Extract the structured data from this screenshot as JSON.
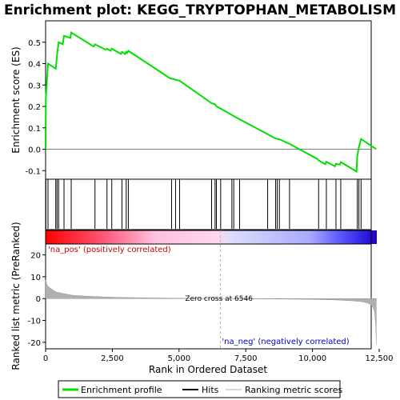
{
  "chart_data": {
    "type": "line",
    "title": "Enrichment plot: KEGG_TRYPTOPHAN_METABOLISM",
    "xlabel": "Rank in Ordered Dataset",
    "ylabel_top": "Enrichment score (ES)",
    "ylabel_bottom": "Ranked list metric (PreRanked)",
    "xlim": [
      0,
      12500
    ],
    "ylim_top": [
      -0.14,
      0.6
    ],
    "ylim_bottom": [
      -23,
      25
    ],
    "x_ticks": [
      "0",
      "2,500",
      "5,000",
      "7,500",
      "10,000",
      "12,500"
    ],
    "x_tick_values": [
      0,
      2500,
      5000,
      7500,
      10000,
      12500
    ],
    "y_ticks_top": [
      "-0.1",
      "0.0",
      "0.1",
      "0.2",
      "0.3",
      "0.4",
      "0.5"
    ],
    "y_tick_values_top": [
      -0.1,
      0.0,
      0.1,
      0.2,
      0.3,
      0.4,
      0.5
    ],
    "y_ticks_bottom": [
      "-20",
      "-10",
      "0",
      "10",
      "20"
    ],
    "y_tick_values_bottom": [
      -20,
      -10,
      0,
      10,
      20
    ],
    "zero_cross_label": "Zero cross at 6546",
    "zero_cross": 6546,
    "na_pos_label": "'na_pos' (positively correlated)",
    "na_neg_label": "'na_neg' (negatively correlated)",
    "hits": [
      10,
      90,
      380,
      430,
      490,
      690,
      960,
      1850,
      2300,
      2480,
      2860,
      3020,
      3100,
      4720,
      4870,
      5020,
      6220,
      6350,
      6400,
      6560,
      6980,
      7050,
      7270,
      8320,
      8620,
      8680,
      8760,
      9140,
      10230,
      10520,
      10880,
      11060,
      11680,
      11740,
      11820
    ],
    "es_curve": [
      [
        0,
        0.0
      ],
      [
        10,
        0.24
      ],
      [
        90,
        0.4
      ],
      [
        380,
        0.376
      ],
      [
        430,
        0.44
      ],
      [
        490,
        0.5
      ],
      [
        640,
        0.49
      ],
      [
        690,
        0.53
      ],
      [
        930,
        0.52
      ],
      [
        960,
        0.545
      ],
      [
        1800,
        0.48
      ],
      [
        1850,
        0.49
      ],
      [
        2250,
        0.465
      ],
      [
        2300,
        0.47
      ],
      [
        2430,
        0.46
      ],
      [
        2480,
        0.47
      ],
      [
        2820,
        0.445
      ],
      [
        2860,
        0.455
      ],
      [
        2980,
        0.445
      ],
      [
        3020,
        0.455
      ],
      [
        3060,
        0.45
      ],
      [
        3100,
        0.46
      ],
      [
        4680,
        0.33
      ],
      [
        4720,
        0.33
      ],
      [
        4870,
        0.325
      ],
      [
        5020,
        0.32
      ],
      [
        6220,
        0.215
      ],
      [
        6350,
        0.21
      ],
      [
        6400,
        0.2
      ],
      [
        6560,
        0.19
      ],
      [
        6980,
        0.16
      ],
      [
        7050,
        0.155
      ],
      [
        7270,
        0.14
      ],
      [
        8320,
        0.07
      ],
      [
        8620,
        0.05
      ],
      [
        8680,
        0.048
      ],
      [
        8760,
        0.047
      ],
      [
        9140,
        0.025
      ],
      [
        10180,
        -0.045
      ],
      [
        10230,
        -0.052
      ],
      [
        10480,
        -0.07
      ],
      [
        10520,
        -0.058
      ],
      [
        10840,
        -0.08
      ],
      [
        10880,
        -0.068
      ],
      [
        11020,
        -0.072
      ],
      [
        11060,
        -0.06
      ],
      [
        11650,
        -0.104
      ],
      [
        11680,
        -0.03
      ],
      [
        11740,
        0.008
      ],
      [
        11820,
        0.048
      ],
      [
        12390,
        0.0
      ]
    ],
    "metric_profile": [
      [
        0,
        8.5
      ],
      [
        60,
        6.0
      ],
      [
        200,
        4.5
      ],
      [
        400,
        3.0
      ],
      [
        700,
        2.2
      ],
      [
        1000,
        1.5
      ],
      [
        1500,
        1.1
      ],
      [
        2000,
        0.85
      ],
      [
        2500,
        0.65
      ],
      [
        3000,
        0.5
      ],
      [
        4000,
        0.3
      ],
      [
        5000,
        0.15
      ],
      [
        6000,
        0.05
      ],
      [
        6546,
        0.0
      ],
      [
        7000,
        -0.05
      ],
      [
        8000,
        -0.12
      ],
      [
        9000,
        -0.2
      ],
      [
        10000,
        -0.35
      ],
      [
        10500,
        -0.5
      ],
      [
        11000,
        -0.7
      ],
      [
        11500,
        -1.0
      ],
      [
        11900,
        -1.5
      ],
      [
        12100,
        -2.2
      ],
      [
        12250,
        -3.5
      ],
      [
        12330,
        -6.0
      ],
      [
        12370,
        -12.0
      ],
      [
        12390,
        -21.0
      ]
    ],
    "legend": [
      "Enrichment profile",
      "Hits",
      "Ranking metric scores"
    ],
    "colors": {
      "es_line": "#00e000",
      "hit": "#000000",
      "metric_fill": "#b0b0b0",
      "pos_label": "#cc0000",
      "neg_label": "#0000cc",
      "zero_line": "#c0c0c0"
    }
  }
}
